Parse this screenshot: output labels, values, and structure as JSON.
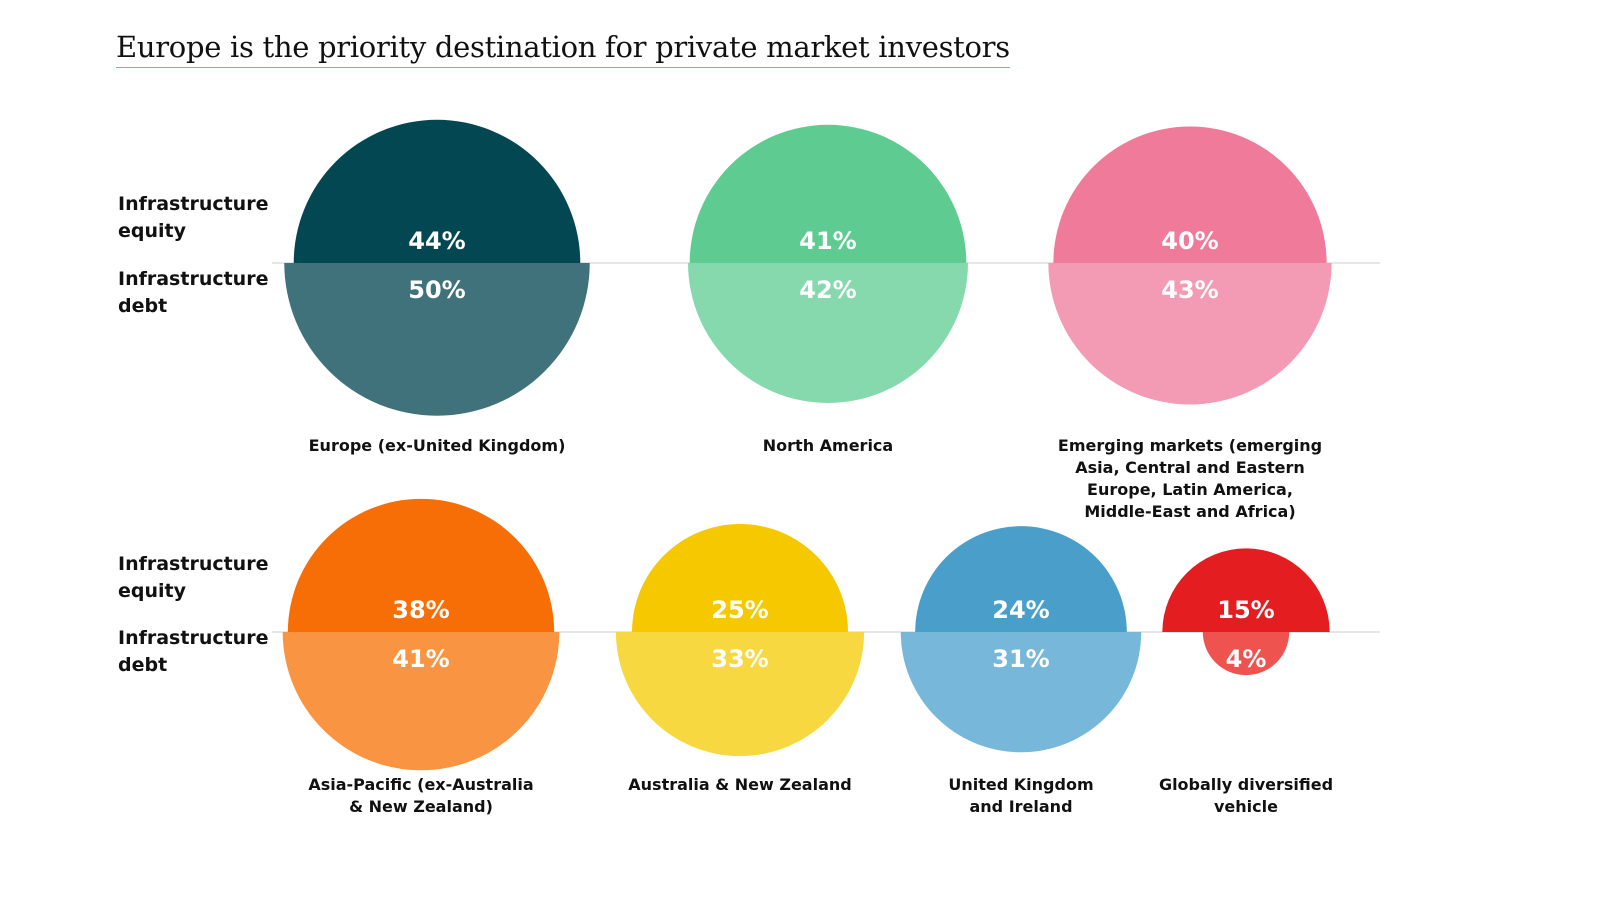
{
  "title": "Europe is the priority destination for private market investors",
  "row_labels": {
    "equity_line1": "Infrastructure",
    "equity_line2": "equity",
    "debt_line1": "Infrastructure",
    "debt_line2": "debt"
  },
  "chart_data": {
    "type": "semicircle-proportional",
    "series": [
      {
        "name": "Infrastructure equity"
      },
      {
        "name": "Infrastructure debt"
      }
    ],
    "unit": "%",
    "rows": [
      {
        "categories": [
          {
            "label_lines": [
              "Europe (ex-United Kingdom)"
            ],
            "equity": 44,
            "debt": 50,
            "equity_color": "#034753",
            "debt_color": "#3f727a",
            "equity_label": "44%",
            "debt_label": "50%"
          },
          {
            "label_lines": [
              "North America"
            ],
            "equity": 41,
            "debt": 42,
            "equity_color": "#5ecb91",
            "debt_color": "#86d9ad",
            "equity_label": "41%",
            "debt_label": "42%"
          },
          {
            "label_lines": [
              "Emerging markets (emerging",
              "Asia, Central and Eastern",
              "Europe, Latin America,",
              "Middle-East and Africa)"
            ],
            "equity": 40,
            "debt": 43,
            "equity_color": "#ef7a9a",
            "debt_color": "#f39bb5",
            "equity_label": "40%",
            "debt_label": "43%"
          }
        ]
      },
      {
        "categories": [
          {
            "label_lines": [
              "Asia-Pacific (ex-Australia",
              "& New Zealand)"
            ],
            "equity": 38,
            "debt": 41,
            "equity_color": "#f76e06",
            "debt_color": "#f99442",
            "equity_label": "38%",
            "debt_label": "41%"
          },
          {
            "label_lines": [
              "Australia & New Zealand"
            ],
            "equity": 25,
            "debt": 33,
            "equity_color": "#f6c800",
            "debt_color": "#f8d840",
            "equity_label": "25%",
            "debt_label": "33%"
          },
          {
            "label_lines": [
              "United Kingdom",
              "and Ireland"
            ],
            "equity": 24,
            "debt": 31,
            "equity_color": "#4a9fca",
            "debt_color": "#77b7d9",
            "equity_label": "24%",
            "debt_label": "31%"
          },
          {
            "label_lines": [
              "Globally diversified",
              "vehicle"
            ],
            "equity": 15,
            "debt": 4,
            "equity_color": "#e31d20",
            "debt_color": "#ef5350",
            "equity_label": "15%",
            "debt_label": "4%"
          }
        ]
      }
    ]
  }
}
